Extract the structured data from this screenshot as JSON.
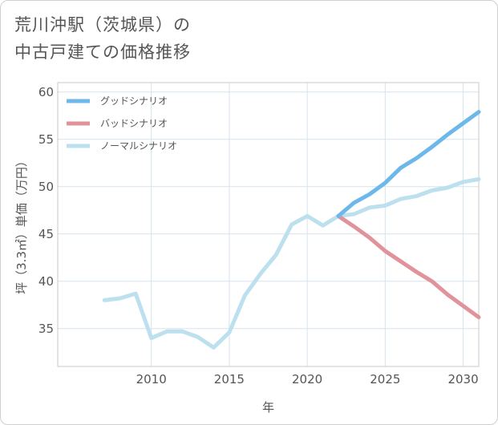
{
  "title": {
    "line1": "荒川沖駅（茨城県）の",
    "line2": "中古戸建ての価格推移"
  },
  "chart_data": {
    "type": "line",
    "xlabel": "年",
    "ylabel": "坪（3.3㎡）単価（万円）",
    "xlim": [
      2004,
      2031
    ],
    "ylim": [
      31,
      61
    ],
    "x_ticks": [
      2010,
      2015,
      2020,
      2025,
      2030
    ],
    "y_ticks": [
      35,
      40,
      45,
      50,
      55,
      60
    ],
    "grid": true,
    "legend_position": "top-left",
    "series": [
      {
        "name": "グッドシナリオ",
        "color": "#6cb8ea",
        "x": [
          2022,
          2023,
          2024,
          2025,
          2026,
          2027,
          2028,
          2029,
          2030,
          2031
        ],
        "y": [
          46.9,
          48.3,
          49.2,
          50.4,
          52.0,
          53.0,
          54.2,
          55.5,
          56.7,
          57.9
        ]
      },
      {
        "name": "バッドシナリオ",
        "color": "#e0939a",
        "x": [
          2022,
          2023,
          2024,
          2025,
          2026,
          2027,
          2028,
          2029,
          2030,
          2031
        ],
        "y": [
          46.9,
          45.8,
          44.6,
          43.2,
          42.1,
          41.0,
          40.0,
          38.6,
          37.4,
          36.2
        ]
      },
      {
        "name": "ノーマルシナリオ",
        "color": "#bde0ef",
        "x": [
          2007,
          2008,
          2009,
          2010,
          2011,
          2012,
          2013,
          2014,
          2015,
          2016,
          2017,
          2018,
          2019,
          2020,
          2021,
          2022,
          2023,
          2024,
          2025,
          2026,
          2027,
          2028,
          2029,
          2030,
          2031
        ],
        "y": [
          38.0,
          38.2,
          38.7,
          34.0,
          34.7,
          34.7,
          34.1,
          33.0,
          34.6,
          38.5,
          40.8,
          42.8,
          46.0,
          46.9,
          45.9,
          46.9,
          47.1,
          47.8,
          48.0,
          48.7,
          49.0,
          49.6,
          49.9,
          50.5,
          50.8
        ]
      }
    ]
  }
}
